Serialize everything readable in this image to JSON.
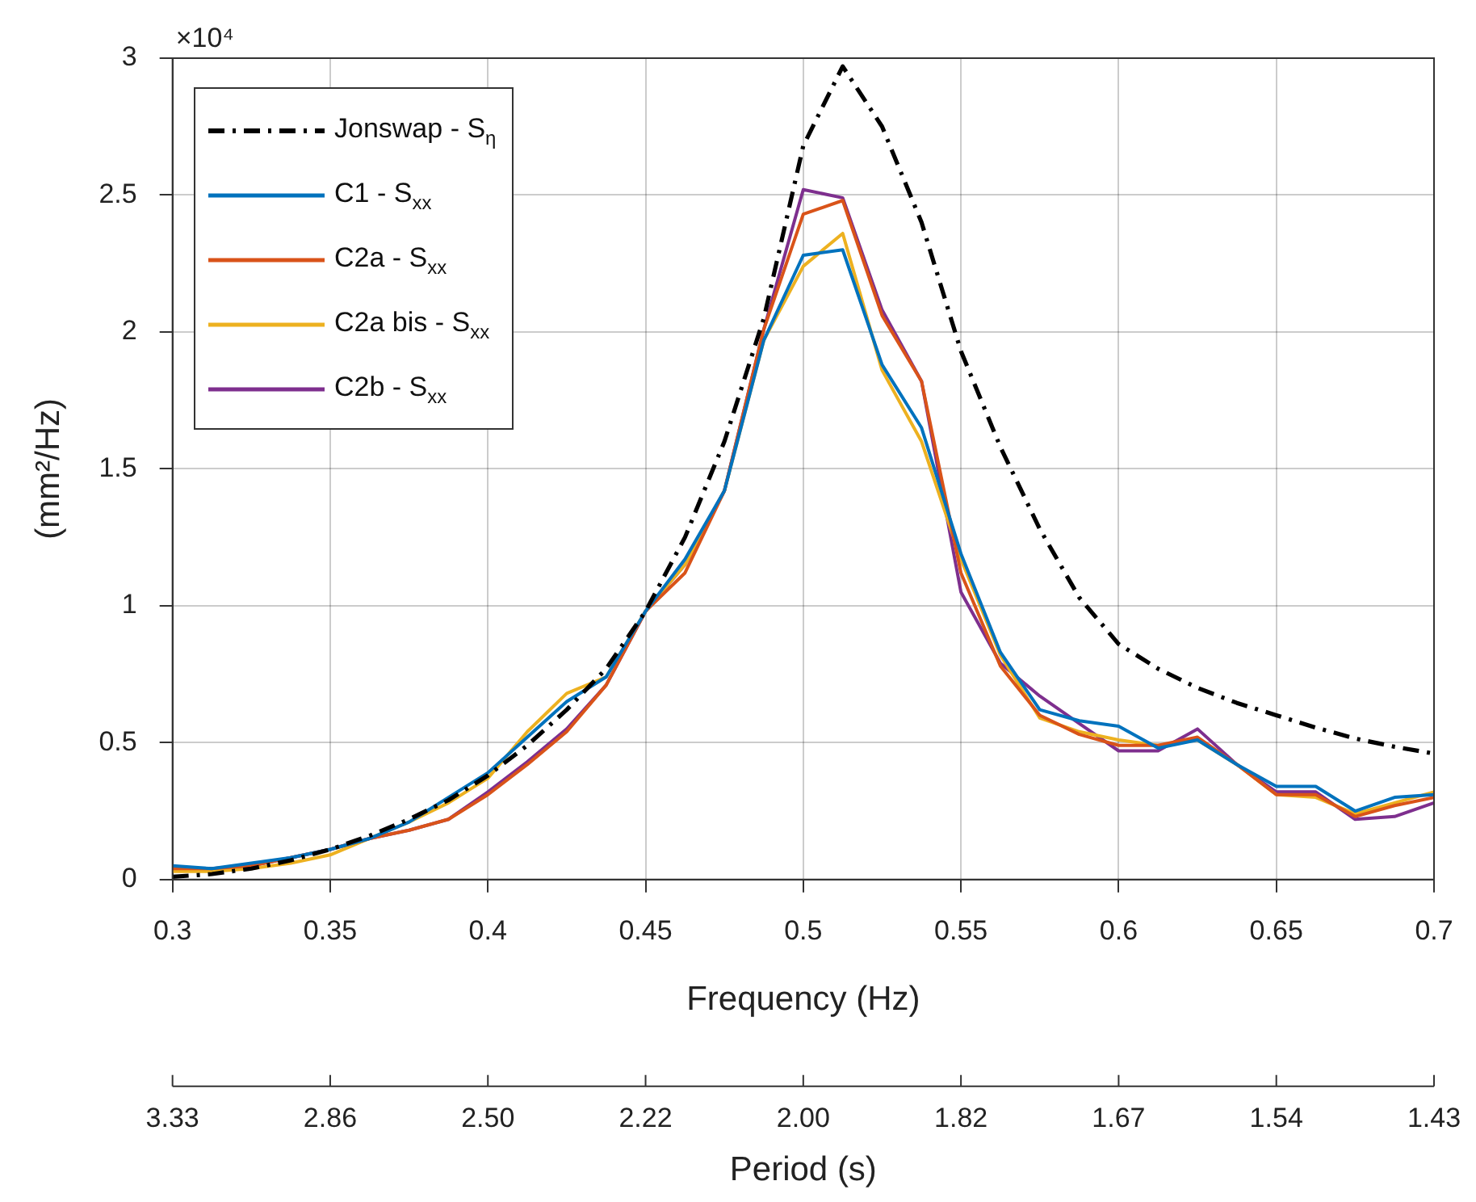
{
  "chart_data": {
    "type": "line",
    "xlabel": "Frequency (Hz)",
    "ylabel": "(mm²/Hz)",
    "x2label": "Period (s)",
    "annotations": [
      "×10⁴",
      {
        "text": "3.33",
        "x": 0.3
      },
      {
        "text": "2.86",
        "x": 0.35
      },
      {
        "text": "2.50",
        "x": 0.4
      },
      {
        "text": "2.22",
        "x": 0.45
      },
      {
        "text": "2.00",
        "x": 0.5
      },
      {
        "text": "1.82",
        "x": 0.55
      },
      {
        "text": "1.67",
        "x": 0.6
      },
      {
        "text": "1.54",
        "x": 0.65
      },
      {
        "text": "1.43",
        "x": 0.7
      }
    ],
    "x": [
      0.3,
      0.3125,
      0.325,
      0.3375,
      0.35,
      0.3625,
      0.375,
      0.3875,
      0.4,
      0.4125,
      0.425,
      0.4375,
      0.45,
      0.4625,
      0.475,
      0.4875,
      0.5,
      0.5125,
      0.525,
      0.5375,
      0.55,
      0.5625,
      0.575,
      0.5875,
      0.6,
      0.6125,
      0.625,
      0.6375,
      0.65,
      0.6625,
      0.675,
      0.6875,
      0.7
    ],
    "series": [
      {
        "name": "Jonswap - S$_{η}$",
        "color": "#000000",
        "line_style": "dashdot",
        "values": [
          0.01,
          0.02,
          0.04,
          0.07,
          0.11,
          0.16,
          0.22,
          0.29,
          0.38,
          0.49,
          0.62,
          0.77,
          0.98,
          1.25,
          1.6,
          2.05,
          2.68,
          2.97,
          2.75,
          2.4,
          1.93,
          1.58,
          1.28,
          1.03,
          0.86,
          0.77,
          0.7,
          0.645,
          0.6,
          0.555,
          0.515,
          0.485,
          0.46
        ]
      },
      {
        "name": "C1 - S$_{xx}$",
        "color": "#0072bd",
        "values": [
          0.05,
          0.04,
          0.06,
          0.08,
          0.11,
          0.15,
          0.21,
          0.3,
          0.39,
          0.52,
          0.65,
          0.74,
          0.98,
          1.17,
          1.42,
          1.97,
          2.28,
          2.3,
          1.88,
          1.65,
          1.19,
          0.83,
          0.62,
          0.58,
          0.56,
          0.48,
          0.51,
          0.42,
          0.34,
          0.34,
          0.25,
          0.3,
          0.31
        ]
      },
      {
        "name": "C2a - S$_{xx}$",
        "color": "#d95319",
        "values": [
          0.04,
          0.04,
          0.05,
          0.08,
          0.11,
          0.15,
          0.18,
          0.22,
          0.31,
          0.42,
          0.54,
          0.71,
          0.98,
          1.12,
          1.42,
          2.01,
          2.43,
          2.48,
          2.06,
          1.82,
          1.12,
          0.78,
          0.6,
          0.53,
          0.49,
          0.49,
          0.52,
          0.42,
          0.31,
          0.31,
          0.23,
          0.27,
          0.3
        ]
      },
      {
        "name": "C2a bis - S$_{xx}$",
        "color": "#edb120",
        "values": [
          0.03,
          0.03,
          0.04,
          0.06,
          0.09,
          0.15,
          0.21,
          0.28,
          0.37,
          0.54,
          0.68,
          0.74,
          0.98,
          1.15,
          1.42,
          1.97,
          2.24,
          2.36,
          1.86,
          1.6,
          1.17,
          0.82,
          0.59,
          0.54,
          0.51,
          0.49,
          0.51,
          0.42,
          0.31,
          0.3,
          0.24,
          0.28,
          0.32
        ]
      },
      {
        "name": "C2b - S$_{xx}$",
        "color": "#7e2f8e",
        "values": [
          0.04,
          0.04,
          0.05,
          0.08,
          0.11,
          0.15,
          0.18,
          0.22,
          0.32,
          0.43,
          0.55,
          0.71,
          0.98,
          1.15,
          1.42,
          2.01,
          2.52,
          2.49,
          2.08,
          1.82,
          1.05,
          0.79,
          0.67,
          0.57,
          0.47,
          0.47,
          0.55,
          0.42,
          0.32,
          0.32,
          0.22,
          0.23,
          0.28
        ]
      }
    ],
    "xlim": [
      0.3,
      0.7
    ],
    "xticks": [
      0.3,
      0.35,
      0.4,
      0.45,
      0.5,
      0.55,
      0.6,
      0.65,
      0.7
    ],
    "ylim": [
      0,
      3
    ],
    "yticks": [
      0,
      0.5,
      1,
      1.5,
      2,
      2.5,
      3
    ],
    "grid": true,
    "legend": "top left",
    "line_style": "solid",
    "marker": "none"
  }
}
